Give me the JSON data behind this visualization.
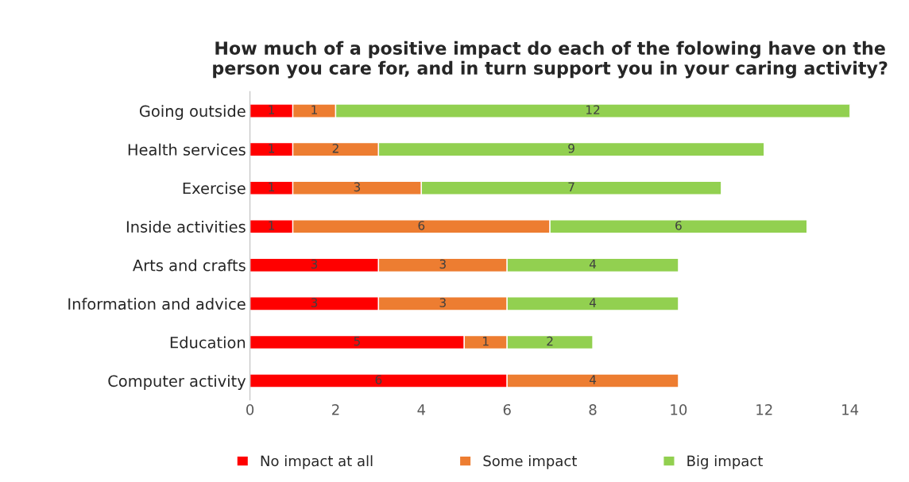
{
  "chart_data": {
    "type": "bar",
    "orientation": "horizontal",
    "stacked": true,
    "title": "How much of a positive impact do each of the folowing have on the person you care for, and in turn support you in your caring activity?",
    "categories": [
      "Going outside",
      "Health services",
      "Exercise",
      "Inside activities",
      "Arts and crafts",
      "Information and advice",
      "Education",
      "Computer activity"
    ],
    "series": [
      {
        "name": "No impact at all",
        "color": "#ff0000",
        "values": [
          1,
          1,
          1,
          1,
          3,
          3,
          5,
          6
        ]
      },
      {
        "name": "Some impact",
        "color": "#ed7d31",
        "values": [
          1,
          2,
          3,
          6,
          3,
          3,
          1,
          4
        ]
      },
      {
        "name": "Big impact",
        "color": "#92d050",
        "values": [
          12,
          9,
          7,
          6,
          4,
          4,
          2,
          null
        ]
      }
    ],
    "xlim": [
      0,
      14
    ],
    "xticks": [
      0,
      2,
      4,
      6,
      8,
      10,
      12,
      14
    ],
    "data_labels": true,
    "legend": "bottom",
    "grid": false
  }
}
